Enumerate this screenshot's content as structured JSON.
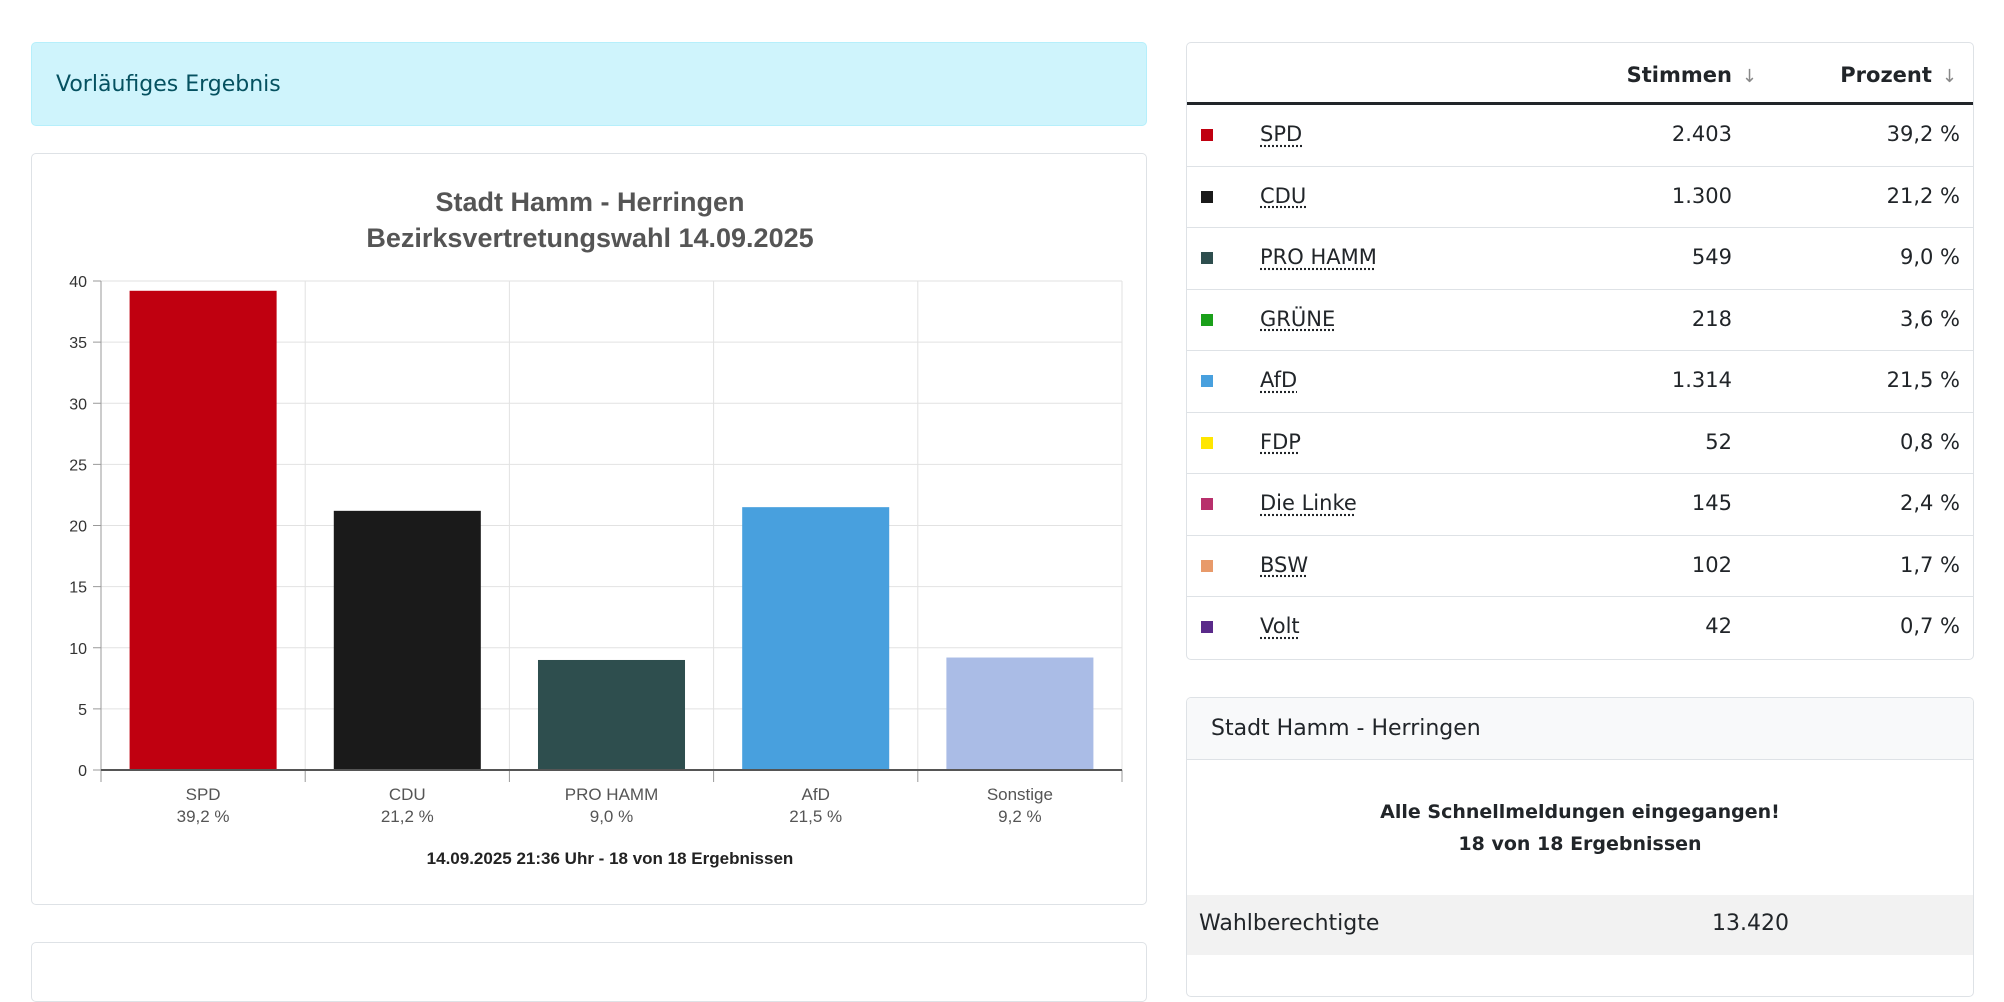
{
  "alert": {
    "text": "Vorläufiges Ergebnis"
  },
  "colors": {
    "SPD": "#c00010",
    "CDU": "#1a1a1a",
    "PRO HAMM": "#2e4e4e",
    "GRÜNE": "#1aa01a",
    "AfD": "#48a0de",
    "FDP": "#ffe600",
    "Die Linke": "#b8306c",
    "BSW": "#e89a6a",
    "Volt": "#5a2a8a",
    "Sonstige": "#aabce6"
  },
  "chart_data": {
    "type": "bar",
    "title": "Stadt Hamm - Herringen",
    "subtitle": "Bezirksvertretungswahl 14.09.2025",
    "categories": [
      "SPD",
      "CDU",
      "PRO HAMM",
      "AfD",
      "Sonstige"
    ],
    "values": [
      39.2,
      21.2,
      9.0,
      21.5,
      9.2
    ],
    "value_labels": [
      "39,2 %",
      "21,2 %",
      "9,0 %",
      "21,5 %",
      "9,2 %"
    ],
    "colors": [
      "#c00010",
      "#1a1a1a",
      "#2e4e4e",
      "#48a0de",
      "#aabce6"
    ],
    "ylim": [
      0,
      40
    ],
    "yticks": [
      0,
      5,
      10,
      15,
      20,
      25,
      30,
      35,
      40
    ],
    "grid": true,
    "footer": "14.09.2025 21:36 Uhr - 18 von 18 Ergebnissen"
  },
  "table": {
    "headers": {
      "votes": "Stimmen",
      "percent": "Prozent",
      "sort_arrow": "↓"
    },
    "rows": [
      {
        "party": "SPD",
        "votes": "2.403",
        "percent": "39,2 %"
      },
      {
        "party": "CDU",
        "votes": "1.300",
        "percent": "21,2 %"
      },
      {
        "party": "PRO HAMM",
        "votes": "549",
        "percent": "9,0 %"
      },
      {
        "party": "GRÜNE",
        "votes": "218",
        "percent": "3,6 %"
      },
      {
        "party": "AfD",
        "votes": "1.314",
        "percent": "21,5 %"
      },
      {
        "party": "FDP",
        "votes": "52",
        "percent": "0,8 %"
      },
      {
        "party": "Die Linke",
        "votes": "145",
        "percent": "2,4 %"
      },
      {
        "party": "BSW",
        "votes": "102",
        "percent": "1,7 %"
      },
      {
        "party": "Volt",
        "votes": "42",
        "percent": "0,7 %"
      }
    ]
  },
  "info": {
    "header": "Stadt Hamm - Herringen",
    "message_line1": "Alle Schnellmeldungen eingegangen!",
    "message_line2": "18 von 18 Ergebnissen",
    "stat_label": "Wahlberechtigte",
    "stat_value": "13.420"
  }
}
